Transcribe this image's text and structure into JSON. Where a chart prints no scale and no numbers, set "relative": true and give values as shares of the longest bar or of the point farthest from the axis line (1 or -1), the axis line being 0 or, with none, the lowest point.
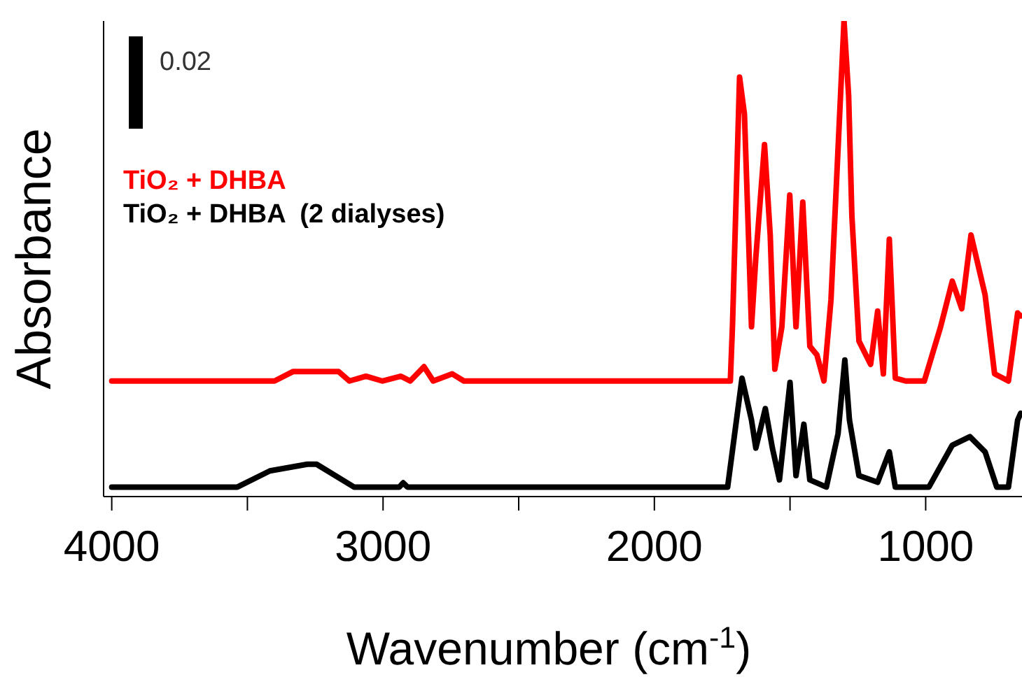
{
  "chart_data": {
    "type": "line",
    "xlabel": "Wavenumber (cm$^{-1}$)",
    "ylabel": "Absorbance",
    "relative": true,
    "xlim": [
      4030,
      645
    ],
    "xticks": [
      4000,
      {
        "value": 3500,
        "label": null
      },
      3000,
      {
        "value": 2500,
        "label": null
      },
      2000,
      {
        "value": 1500,
        "label": null
      },
      1000
    ],
    "tick_labels": "x",
    "legend": "top left",
    "grid": false,
    "marker": "none",
    "line_style": "solid",
    "annotations": [
      "0.02"
    ],
    "series": [
      {
        "name": "TiO₂ + DHBA",
        "color": "#ff0000",
        "x": [
          4000,
          3400,
          3331,
          3164,
          3124,
          3063,
          3003,
          2934,
          2900,
          2849,
          2815,
          2745,
          2702,
          1720,
          1712,
          1686,
          1668,
          1660,
          1642,
          1626,
          1594,
          1573,
          1556,
          1530,
          1501,
          1478,
          1453,
          1427,
          1401,
          1375,
          1349,
          1301,
          1284,
          1272,
          1246,
          1203,
          1177,
          1156,
          1134,
          1112,
          1074,
          1005,
          945,
          902,
          867,
          833,
          781,
          746,
          695,
          661,
          650
        ],
        "values": [
          0.243,
          0.243,
          0.263,
          0.263,
          0.243,
          0.253,
          0.243,
          0.253,
          0.243,
          0.273,
          0.243,
          0.258,
          0.243,
          0.243,
          0.36,
          0.882,
          0.804,
          0.667,
          0.357,
          0.503,
          0.74,
          0.55,
          0.268,
          0.357,
          0.634,
          0.357,
          0.619,
          0.316,
          0.298,
          0.243,
          0.414,
          1,
          0.843,
          0.59,
          0.327,
          0.278,
          0.39,
          0.258,
          0.541,
          0.249,
          0.243,
          0.243,
          0.357,
          0.453,
          0.395,
          0.55,
          0.424,
          0.258,
          0.243,
          0.386,
          0.38
        ]
      },
      {
        "name": "TiO₂ + DHBA  (2 dialyses)",
        "color": "#000000",
        "x": [
          4000,
          3537,
          3417,
          3279,
          3245,
          3107,
          2940,
          2926,
          2910,
          1730,
          1677,
          1642,
          1626,
          1591,
          1565,
          1539,
          1500,
          1478,
          1449,
          1427,
          1366,
          1323,
          1298,
          1281,
          1246,
          1177,
          1134,
          1112,
          988,
          902,
          837,
          781,
          738,
          695,
          661,
          650
        ],
        "values": [
          0.02,
          0.02,
          0.054,
          0.068,
          0.068,
          0.02,
          0.02,
          0.029,
          0.02,
          0.02,
          0.249,
          0.161,
          0.102,
          0.185,
          0.102,
          0.035,
          0.24,
          0.044,
          0.152,
          0.035,
          0.02,
          0.132,
          0.287,
          0.161,
          0.044,
          0.03,
          0.094,
          0.02,
          0.02,
          0.108,
          0.126,
          0.094,
          0.02,
          0.02,
          0.161,
          0.175
        ]
      }
    ]
  }
}
